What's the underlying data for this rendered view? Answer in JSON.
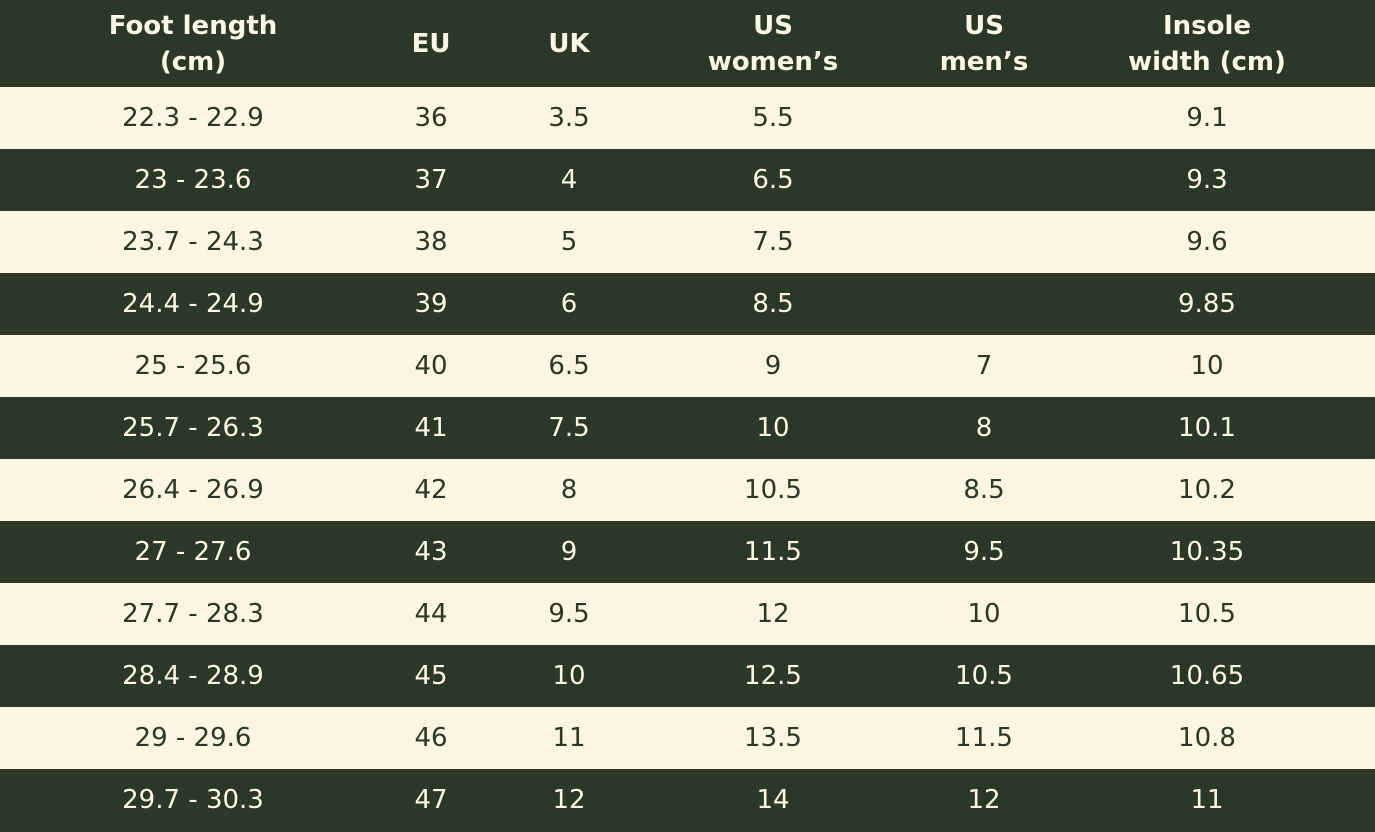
{
  "table": {
    "header": [
      [
        "Foot length (cm)"
      ],
      [
        "EU"
      ],
      [
        "UK"
      ],
      [
        "US",
        "women’s"
      ],
      [
        "US",
        "men’s"
      ],
      [
        "Insole",
        "width (cm)"
      ]
    ],
    "rows": [
      [
        "22.3 - 22.9",
        "36",
        "3.5",
        "5.5",
        null,
        "9.1"
      ],
      [
        "23 - 23.6",
        "37",
        "4",
        "6.5",
        null,
        "9.3"
      ],
      [
        "23.7 - 24.3",
        "38",
        "5",
        "7.5",
        null,
        "9.6"
      ],
      [
        "24.4 - 24.9",
        "39",
        "6",
        "8.5",
        null,
        "9.85"
      ],
      [
        "25 - 25.6",
        "40",
        "6.5",
        "9",
        "7",
        "10"
      ],
      [
        "25.7 - 26.3",
        "41",
        "7.5",
        "10",
        "8",
        "10.1"
      ],
      [
        "26.4 - 26.9",
        "42",
        "8",
        "10.5",
        "8.5",
        "10.2"
      ],
      [
        "27 - 27.6",
        "43",
        "9",
        "11.5",
        "9.5",
        "10.35"
      ],
      [
        "27.7 - 28.3",
        "44",
        "9.5",
        "12",
        "10",
        "10.5"
      ],
      [
        "28.4 - 28.9",
        "45",
        "10",
        "12.5",
        "10.5",
        "10.65"
      ],
      [
        "29 - 29.6",
        "46",
        "11",
        "13.5",
        "11.5",
        "10.8"
      ],
      [
        "29.7 - 30.3",
        "47",
        "12",
        "14",
        "12",
        "11"
      ]
    ]
  }
}
